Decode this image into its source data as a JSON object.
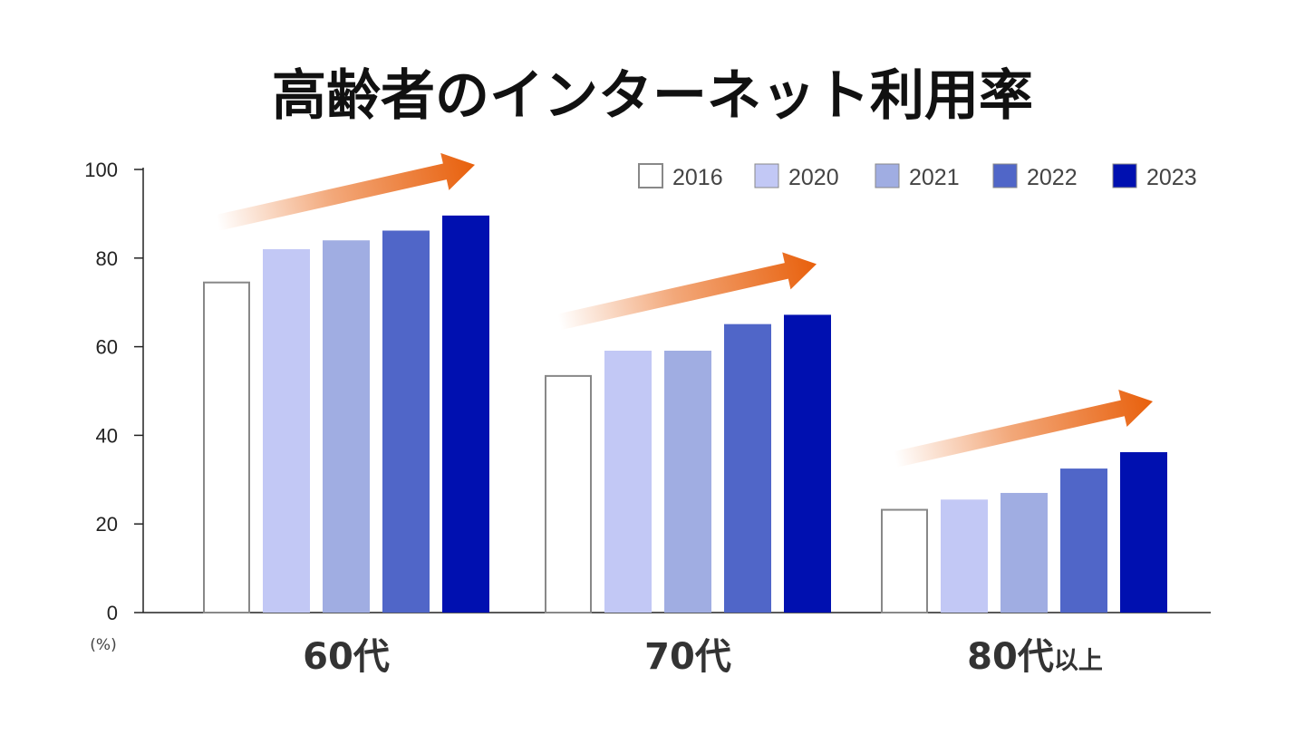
{
  "chart_data": {
    "type": "bar",
    "title": "高齢者のインターネット利用率",
    "ylabel": "(%)",
    "xlabel": "",
    "ylim": [
      0,
      100
    ],
    "yticks": [
      0,
      20,
      40,
      60,
      80,
      100
    ],
    "categories": [
      {
        "main": "60代",
        "suffix": ""
      },
      {
        "main": "70代",
        "suffix": ""
      },
      {
        "main": "80代",
        "suffix": "以上"
      }
    ],
    "series": [
      {
        "name": "2016",
        "color": "#ffffff",
        "stroke": "#888888",
        "values": [
          74.7,
          53.6,
          23.4
        ]
      },
      {
        "name": "2020",
        "color": "#c2c8f5",
        "stroke": "none",
        "values": [
          82.0,
          59.1,
          25.5
        ]
      },
      {
        "name": "2021",
        "color": "#a0ade2",
        "stroke": "none",
        "values": [
          84.0,
          59.1,
          27.0
        ]
      },
      {
        "name": "2022",
        "color": "#5066c8",
        "stroke": "none",
        "values": [
          86.2,
          65.1,
          32.5
        ]
      },
      {
        "name": "2023",
        "color": "#0010b0",
        "stroke": "none",
        "values": [
          89.6,
          67.2,
          36.2
        ]
      }
    ],
    "trend_arrow_color": "#e8600c",
    "legend_position": "top-right",
    "grid": false
  }
}
